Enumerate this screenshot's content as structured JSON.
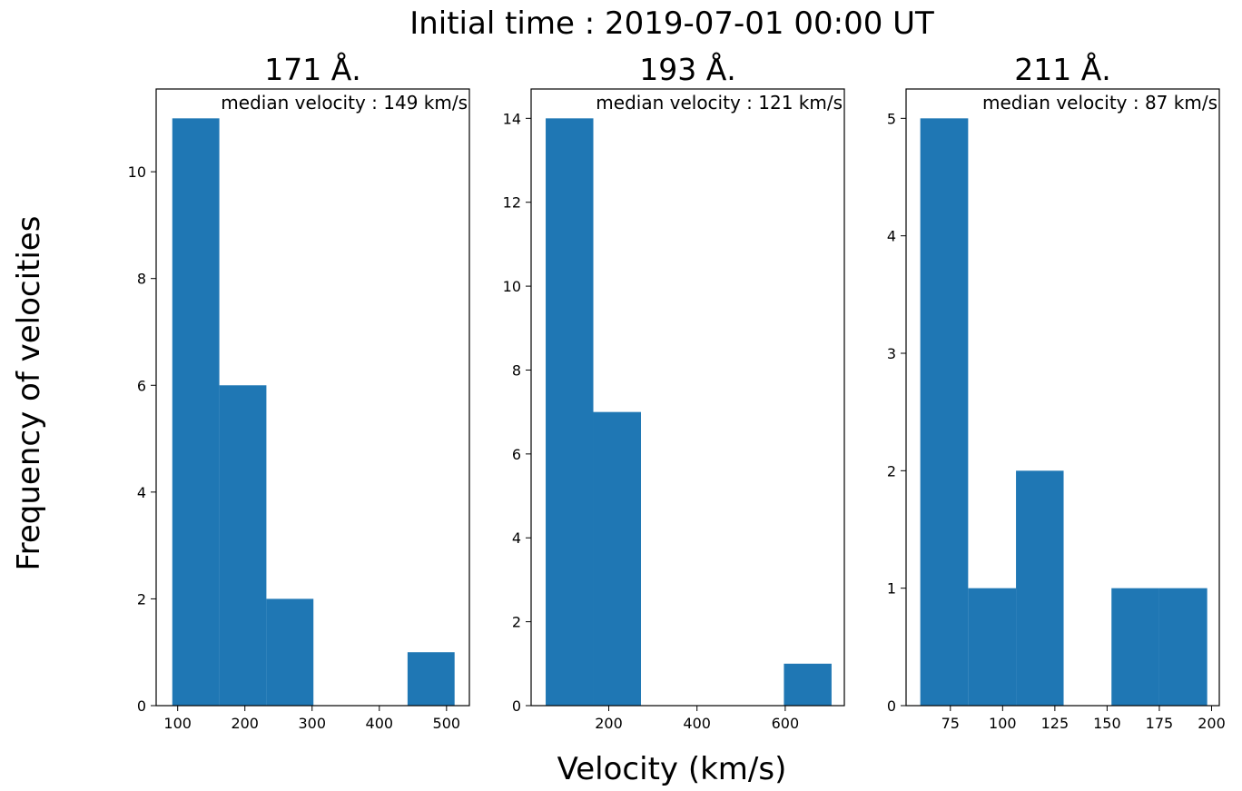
{
  "figure": {
    "title": "Initial time : 2019-07-01 00:00 UT",
    "xlabel": "Velocity (km/s)",
    "ylabel": "Frequency of velocities"
  },
  "chart_data": [
    {
      "type": "bar",
      "title": "171 Å.",
      "annotation": "median velocity  : 149 km/s",
      "xlim": [
        68,
        534
      ],
      "ylim": [
        0,
        11.55
      ],
      "xticks": [
        100,
        200,
        300,
        400,
        500
      ],
      "yticks": [
        0,
        2,
        4,
        6,
        8,
        10
      ],
      "bins": [
        {
          "x0": 92,
          "x1": 162,
          "count": 11
        },
        {
          "x0": 162,
          "x1": 232,
          "count": 6
        },
        {
          "x0": 232,
          "x1": 302,
          "count": 2
        },
        {
          "x0": 302,
          "x1": 372,
          "count": 0
        },
        {
          "x0": 372,
          "x1": 442,
          "count": 0
        },
        {
          "x0": 442,
          "x1": 512,
          "count": 1
        }
      ],
      "color": "#1f77b4"
    },
    {
      "type": "bar",
      "title": "193 Å.",
      "annotation": "median velocity  : 121 km/s",
      "xlim": [
        24,
        734
      ],
      "ylim": [
        0,
        14.7
      ],
      "xticks": [
        200,
        400,
        600
      ],
      "yticks": [
        0,
        2,
        4,
        6,
        8,
        10,
        12,
        14
      ],
      "bins": [
        {
          "x0": 57,
          "x1": 165,
          "count": 14
        },
        {
          "x0": 165,
          "x1": 273,
          "count": 7
        },
        {
          "x0": 273,
          "x1": 381,
          "count": 0
        },
        {
          "x0": 381,
          "x1": 489,
          "count": 0
        },
        {
          "x0": 489,
          "x1": 597,
          "count": 0
        },
        {
          "x0": 597,
          "x1": 705,
          "count": 1
        }
      ],
      "color": "#1f77b4"
    },
    {
      "type": "bar",
      "title": "211 Å.",
      "annotation": "median velocity  : 87 km/s",
      "xlim": [
        53.8,
        203.7
      ],
      "ylim": [
        0,
        5.25
      ],
      "xticks": [
        75,
        100,
        125,
        150,
        175,
        200
      ],
      "yticks": [
        0,
        1,
        2,
        3,
        4,
        5
      ],
      "bins": [
        {
          "x0": 60.6,
          "x1": 83.5,
          "count": 5
        },
        {
          "x0": 83.5,
          "x1": 106.4,
          "count": 1
        },
        {
          "x0": 106.4,
          "x1": 129.2,
          "count": 2
        },
        {
          "x0": 129.2,
          "x1": 152.1,
          "count": 0
        },
        {
          "x0": 152.1,
          "x1": 175,
          "count": 1
        },
        {
          "x0": 175,
          "x1": 197.9,
          "count": 1
        }
      ],
      "color": "#1f77b4"
    }
  ]
}
